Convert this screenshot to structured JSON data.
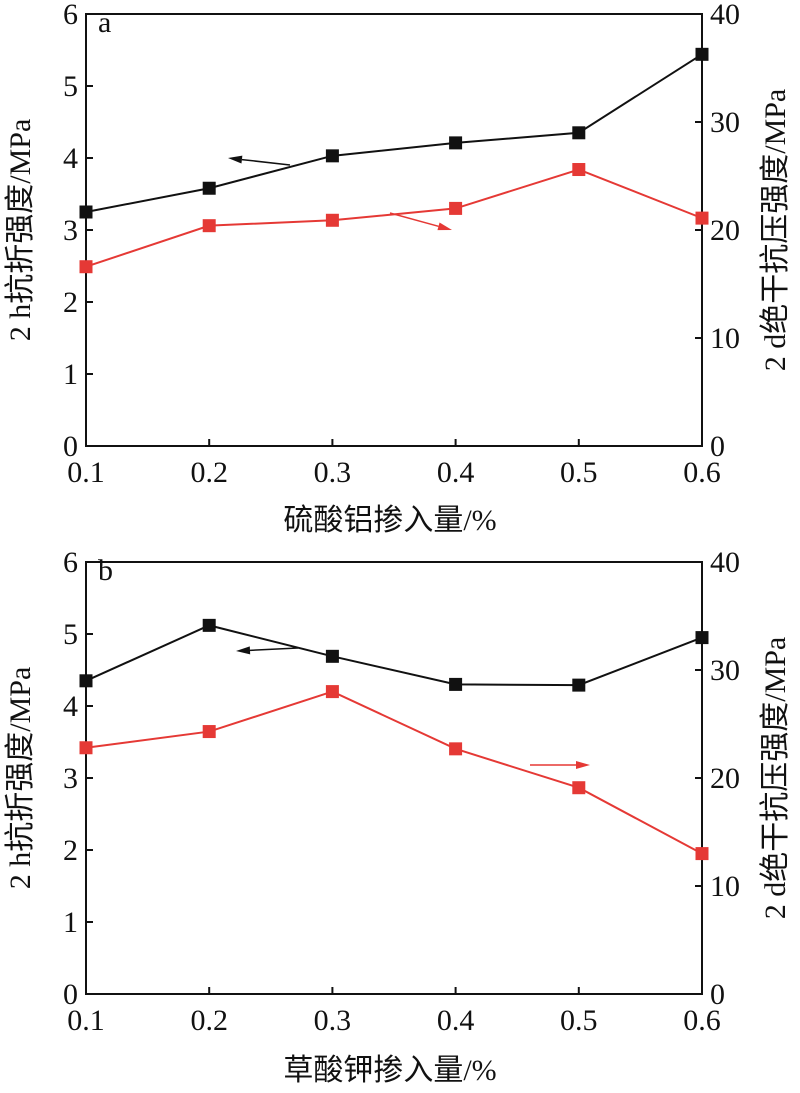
{
  "figure": {
    "colors": {
      "black_series": "#111111",
      "red_series": "#e53935",
      "axis": "#111111"
    }
  },
  "chart_data": [
    {
      "type": "line",
      "panel_label": "a",
      "xlabel": "硫酸铝掺入量/%",
      "ylabel_left": "2 h抗折强度/MPa",
      "ylabel_right": "2 d绝干抗压强度/MPa",
      "x_ticks": [
        "0.1",
        "0.2",
        "0.3",
        "0.4",
        "0.5",
        "0.6"
      ],
      "y_left_ticks": [
        "0",
        "1",
        "2",
        "3",
        "4",
        "5",
        "6"
      ],
      "y_right_ticks": [
        "0",
        "10",
        "20",
        "30",
        "40"
      ],
      "xlim": [
        0.1,
        0.6
      ],
      "ylim_left": [
        0,
        6
      ],
      "ylim_right": [
        0,
        40
      ],
      "grid": false,
      "series": [
        {
          "axis": "left",
          "color": "#111111",
          "marker": "square",
          "x": [
            0.1,
            0.2,
            0.3,
            0.4,
            0.5,
            0.6
          ],
          "values": [
            3.25,
            3.58,
            4.03,
            4.21,
            4.35,
            5.44
          ]
        },
        {
          "axis": "right",
          "color": "#e53935",
          "marker": "square",
          "x": [
            0.1,
            0.2,
            0.3,
            0.4,
            0.5,
            0.6
          ],
          "values": [
            16.6,
            20.4,
            20.9,
            22.0,
            25.6,
            21.1
          ]
        }
      ]
    },
    {
      "type": "line",
      "panel_label": "b",
      "xlabel": "草酸钾掺入量/%",
      "ylabel_left": "2 h抗折强度/MPa",
      "ylabel_right": "2 d绝干抗压强度/MPa",
      "x_ticks": [
        "0.1",
        "0.2",
        "0.3",
        "0.4",
        "0.5",
        "0.6"
      ],
      "y_left_ticks": [
        "0",
        "1",
        "2",
        "3",
        "4",
        "5",
        "6"
      ],
      "y_right_ticks": [
        "0",
        "10",
        "20",
        "30",
        "40"
      ],
      "xlim": [
        0.1,
        0.6
      ],
      "ylim_left": [
        0,
        6
      ],
      "ylim_right": [
        0,
        40
      ],
      "grid": false,
      "series": [
        {
          "axis": "left",
          "color": "#111111",
          "marker": "square",
          "x": [
            0.1,
            0.2,
            0.3,
            0.4,
            0.5,
            0.6
          ],
          "values": [
            4.35,
            5.12,
            4.69,
            4.3,
            4.29,
            4.95
          ]
        },
        {
          "axis": "right",
          "color": "#e53935",
          "marker": "square",
          "x": [
            0.1,
            0.2,
            0.3,
            0.4,
            0.5,
            0.6
          ],
          "values": [
            22.8,
            24.3,
            28.0,
            22.7,
            19.1,
            13.0
          ]
        }
      ]
    }
  ]
}
